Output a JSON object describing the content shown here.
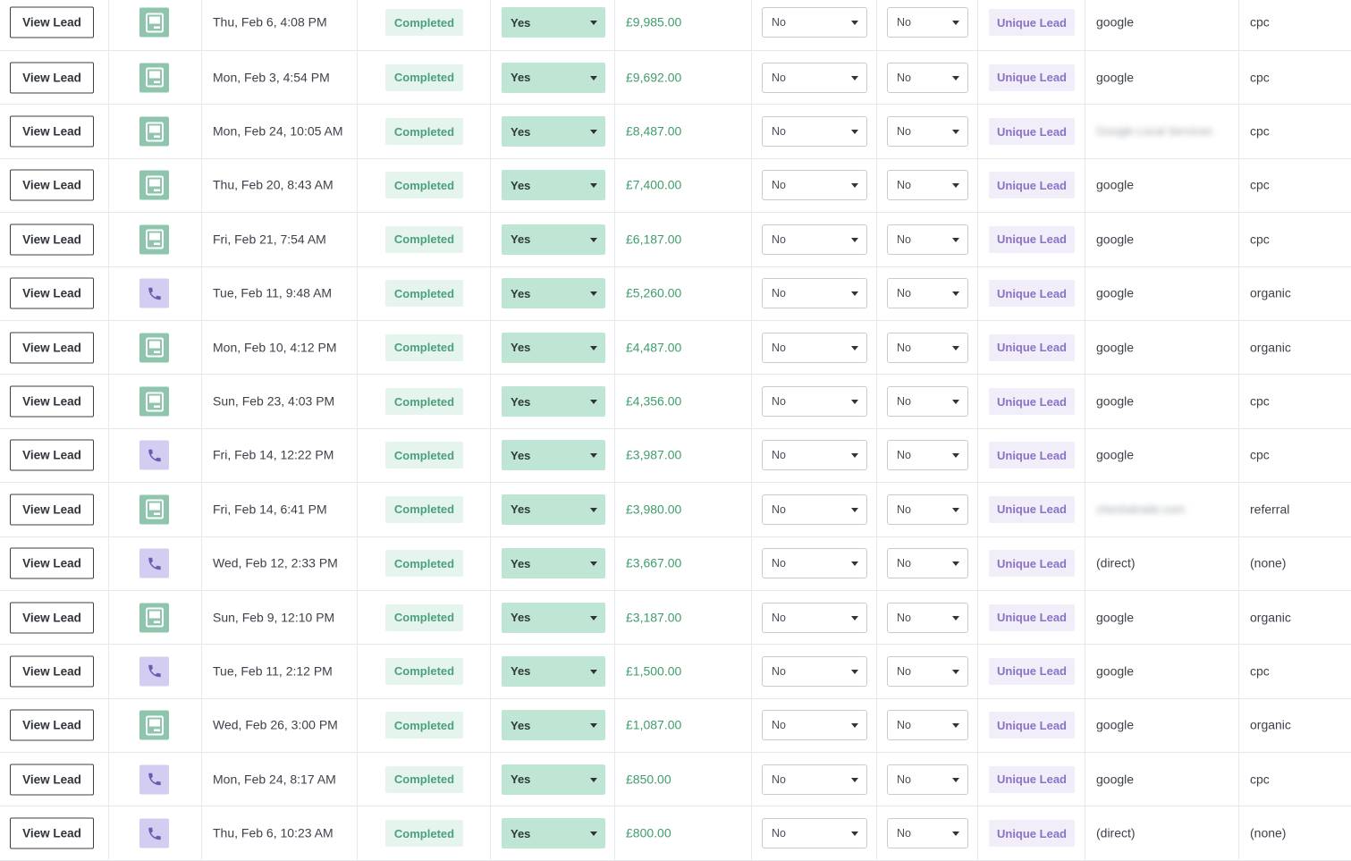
{
  "labels": {
    "view_button": "View Lead",
    "status_text": "Completed",
    "unique_text": "Unique Lead"
  },
  "icons": {
    "form": "form-icon",
    "call": "phone-icon"
  },
  "colors": {
    "status_green": "#4aa07b",
    "amount_green": "#3f9d6c",
    "unique_purple": "#8a72c6",
    "form_icon_bg": "#8fc4ad",
    "call_icon_bg": "#d3cdf2"
  },
  "rows": [
    {
      "type": "form",
      "date": "Thu, Feb 6, 4:08 PM",
      "select_a": "Yes",
      "amount": "£9,985.00",
      "select_b": "No",
      "select_c": "No",
      "source": "google",
      "source_blurred": false,
      "medium": "cpc"
    },
    {
      "type": "form",
      "date": "Mon, Feb 3, 4:54 PM",
      "select_a": "Yes",
      "amount": "£9,692.00",
      "select_b": "No",
      "select_c": "No",
      "source": "google",
      "source_blurred": false,
      "medium": "cpc"
    },
    {
      "type": "form",
      "date": "Mon, Feb 24, 10:05 AM",
      "select_a": "Yes",
      "amount": "£8,487.00",
      "select_b": "No",
      "select_c": "No",
      "source": "Google Local Services",
      "source_blurred": true,
      "medium": "cpc"
    },
    {
      "type": "form",
      "date": "Thu, Feb 20, 8:43 AM",
      "select_a": "Yes",
      "amount": "£7,400.00",
      "select_b": "No",
      "select_c": "No",
      "source": "google",
      "source_blurred": false,
      "medium": "cpc"
    },
    {
      "type": "form",
      "date": "Fri, Feb 21, 7:54 AM",
      "select_a": "Yes",
      "amount": "£6,187.00",
      "select_b": "No",
      "select_c": "No",
      "source": "google",
      "source_blurred": false,
      "medium": "cpc"
    },
    {
      "type": "call",
      "date": "Tue, Feb 11, 9:48 AM",
      "select_a": "Yes",
      "amount": "£5,260.00",
      "select_b": "No",
      "select_c": "No",
      "source": "google",
      "source_blurred": false,
      "medium": "organic"
    },
    {
      "type": "form",
      "date": "Mon, Feb 10, 4:12 PM",
      "select_a": "Yes",
      "amount": "£4,487.00",
      "select_b": "No",
      "select_c": "No",
      "source": "google",
      "source_blurred": false,
      "medium": "organic"
    },
    {
      "type": "form",
      "date": "Sun, Feb 23, 4:03 PM",
      "select_a": "Yes",
      "amount": "£4,356.00",
      "select_b": "No",
      "select_c": "No",
      "source": "google",
      "source_blurred": false,
      "medium": "cpc"
    },
    {
      "type": "call",
      "date": "Fri, Feb 14, 12:22 PM",
      "select_a": "Yes",
      "amount": "£3,987.00",
      "select_b": "No",
      "select_c": "No",
      "source": "google",
      "source_blurred": false,
      "medium": "cpc"
    },
    {
      "type": "form",
      "date": "Fri, Feb 14, 6:41 PM",
      "select_a": "Yes",
      "amount": "£3,980.00",
      "select_b": "No",
      "select_c": "No",
      "source": "checkatrade.com",
      "source_blurred": true,
      "medium": "referral"
    },
    {
      "type": "call",
      "date": "Wed, Feb 12, 2:33 PM",
      "select_a": "Yes",
      "amount": "£3,667.00",
      "select_b": "No",
      "select_c": "No",
      "source": "(direct)",
      "source_blurred": false,
      "medium": "(none)"
    },
    {
      "type": "form",
      "date": "Sun, Feb 9, 12:10 PM",
      "select_a": "Yes",
      "amount": "£3,187.00",
      "select_b": "No",
      "select_c": "No",
      "source": "google",
      "source_blurred": false,
      "medium": "organic"
    },
    {
      "type": "call",
      "date": "Tue, Feb 11, 2:12 PM",
      "select_a": "Yes",
      "amount": "£1,500.00",
      "select_b": "No",
      "select_c": "No",
      "source": "google",
      "source_blurred": false,
      "medium": "cpc"
    },
    {
      "type": "form",
      "date": "Wed, Feb 26, 3:00 PM",
      "select_a": "Yes",
      "amount": "£1,087.00",
      "select_b": "No",
      "select_c": "No",
      "source": "google",
      "source_blurred": false,
      "medium": "organic"
    },
    {
      "type": "call",
      "date": "Mon, Feb 24, 8:17 AM",
      "select_a": "Yes",
      "amount": "£850.00",
      "select_b": "No",
      "select_c": "No",
      "source": "google",
      "source_blurred": false,
      "medium": "cpc"
    },
    {
      "type": "call",
      "date": "Thu, Feb 6, 10:23 AM",
      "select_a": "Yes",
      "amount": "£800.00",
      "select_b": "No",
      "select_c": "No",
      "source": "(direct)",
      "source_blurred": false,
      "medium": "(none)"
    }
  ]
}
